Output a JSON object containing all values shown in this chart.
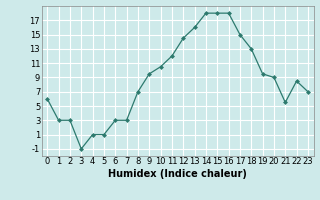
{
  "x": [
    0,
    1,
    2,
    3,
    4,
    5,
    6,
    7,
    8,
    9,
    10,
    11,
    12,
    13,
    14,
    15,
    16,
    17,
    18,
    19,
    20,
    21,
    22,
    23
  ],
  "y": [
    6,
    3,
    3,
    -1,
    1,
    1,
    3,
    3,
    7,
    9.5,
    10.5,
    12,
    14.5,
    16,
    18,
    18,
    18,
    15,
    13,
    9.5,
    9,
    5.5,
    8.5,
    7
  ],
  "line_color": "#2d7a6e",
  "marker": "D",
  "marker_size": 2,
  "bg_color": "#ceeaea",
  "grid_color": "#ffffff",
  "xlabel": "Humidex (Indice chaleur)",
  "xlim": [
    -0.5,
    23.5
  ],
  "ylim": [
    -2,
    19
  ],
  "yticks": [
    -1,
    1,
    3,
    5,
    7,
    9,
    11,
    13,
    15,
    17
  ],
  "xticks": [
    0,
    1,
    2,
    3,
    4,
    5,
    6,
    7,
    8,
    9,
    10,
    11,
    12,
    13,
    14,
    15,
    16,
    17,
    18,
    19,
    20,
    21,
    22,
    23
  ],
  "label_fontsize": 7,
  "tick_fontsize": 6
}
